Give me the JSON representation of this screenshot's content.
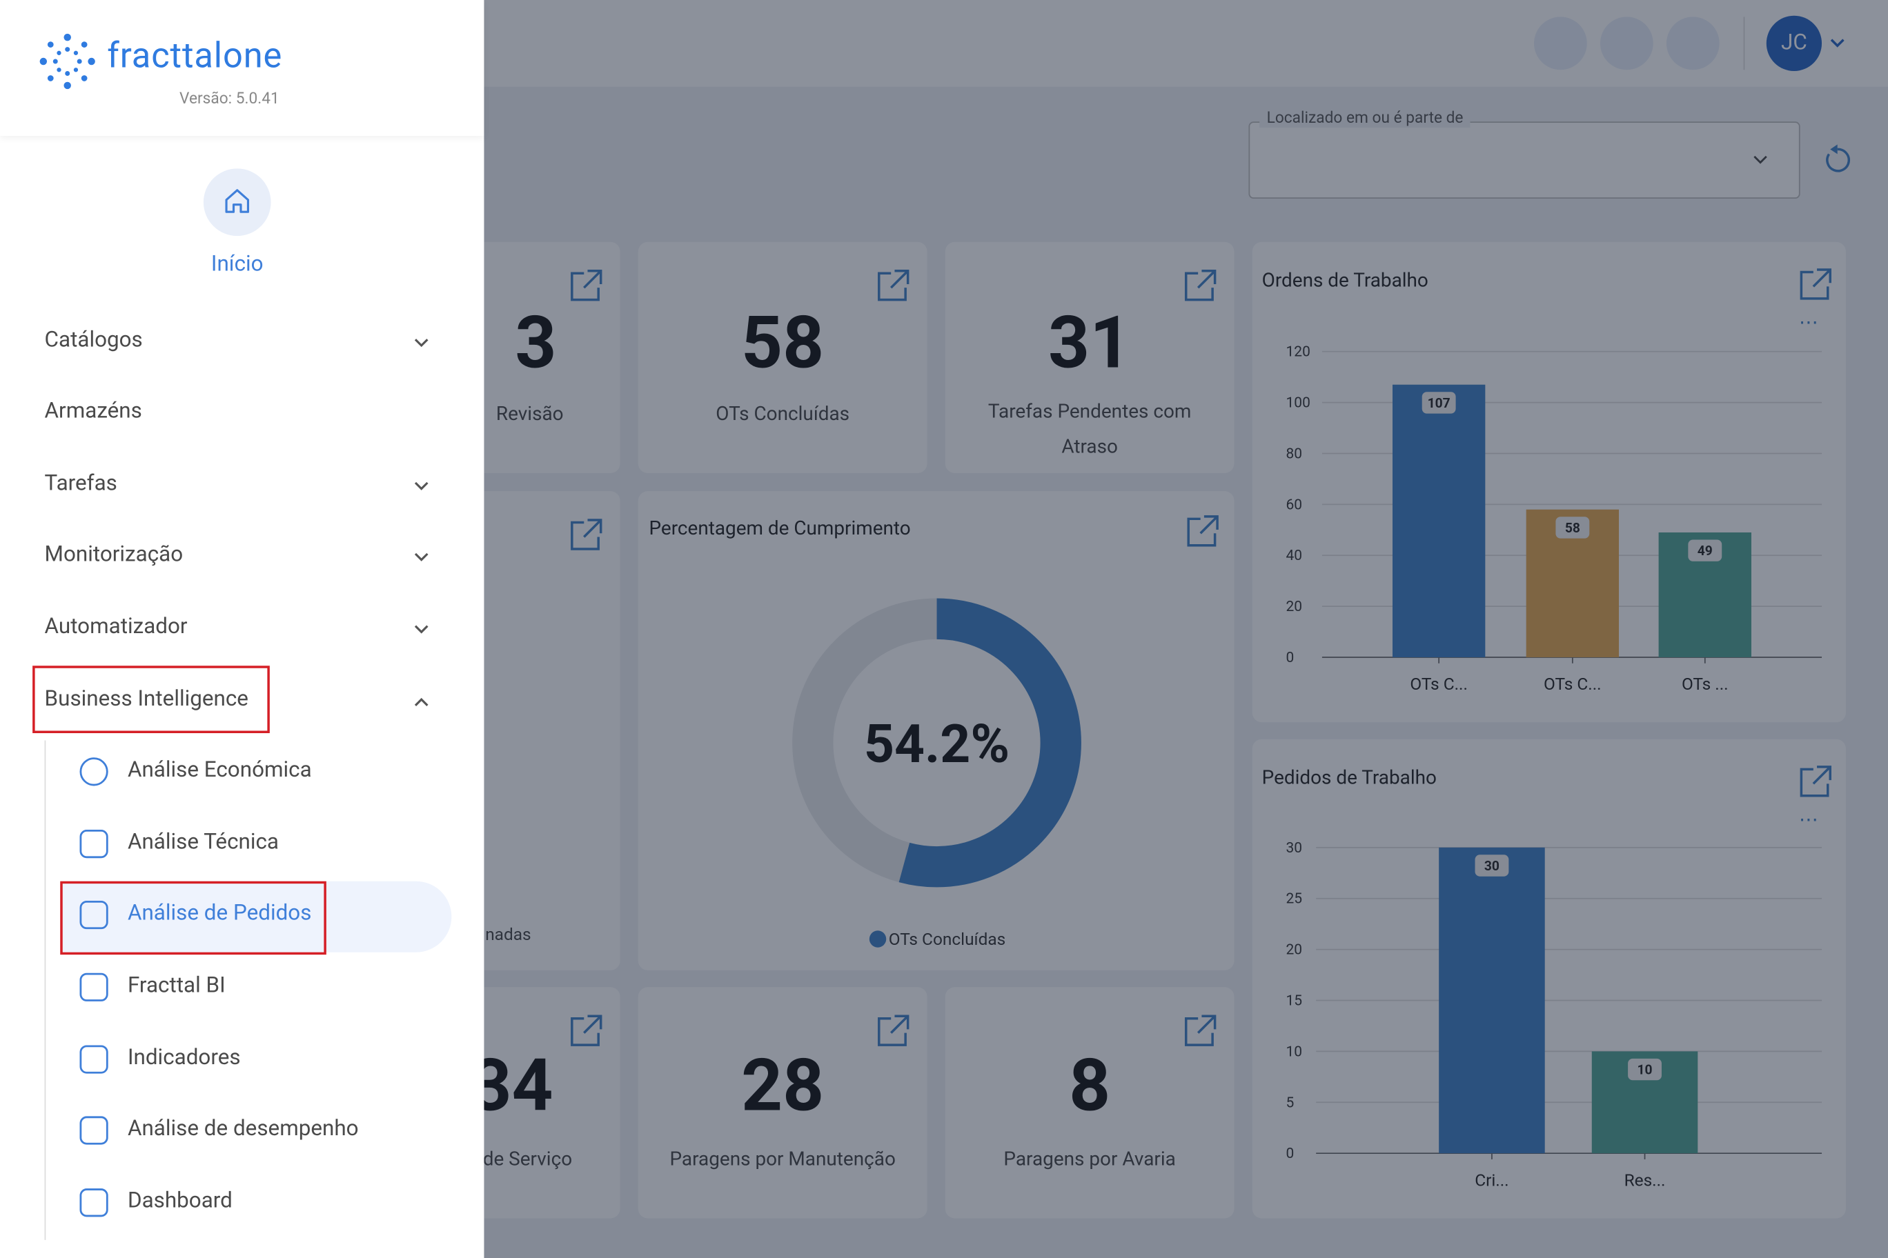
{
  "sidebar": {
    "logo": "fracttalone",
    "version": "Versão: 5.0.41",
    "home": "Início",
    "menu": [
      "Catálogos",
      "Armazéns",
      "Tarefas",
      "Monitorização",
      "Automatizador",
      "Business Intelligence"
    ],
    "submenu": [
      "Análise Económica",
      "Análise Técnica",
      "Análise de Pedidos",
      "Fracttal BI",
      "Indicadores",
      "Análise de desempenho",
      "Dashboard"
    ]
  },
  "header": {
    "avatar": "JC"
  },
  "filter": {
    "label": "Localizado em ou é parte de"
  },
  "cards": [
    {
      "value": 3,
      "label": "Revisão"
    },
    {
      "value": 58,
      "label": "OTs Concluídas"
    },
    {
      "value": 31,
      "label": "Tarefas Pendentes com Atraso"
    },
    {
      "label": "nadas"
    },
    {
      "value": 34,
      "label": "de Serviço"
    },
    {
      "value": 28,
      "label": "Paragens por Manutenção"
    },
    {
      "value": 8,
      "label": "Paragens por Avaria"
    }
  ],
  "charts": [
    {
      "type": "donut",
      "title": "Percentagem de Cumprimento",
      "values": [
        54.2
      ],
      "value_labels": [
        "54.2%"
      ],
      "legend": "OTs Concluídas",
      "color": "#3d7fc4"
    },
    {
      "type": "bar",
      "title": "Ordens de Trabalho",
      "categories": [
        "OTs C...",
        "OTs C...",
        "OTs ..."
      ],
      "values": [
        107,
        58,
        49
      ],
      "colors": [
        "#3d7fc4",
        "#e3a64e",
        "#4fa392"
      ],
      "ylim": [
        0,
        120
      ],
      "yticks": [
        0,
        20,
        40,
        60,
        80,
        100,
        120
      ],
      "grid": true
    },
    {
      "type": "bar",
      "title": "Pedidos de Trabalho",
      "categories": [
        "Cri...",
        "Res..."
      ],
      "values": [
        30,
        10
      ],
      "colors": [
        "#3d7fc4",
        "#4fa392"
      ],
      "ylim": [
        0,
        30
      ],
      "yticks": [
        0,
        5,
        10,
        15,
        20,
        25,
        30
      ],
      "grid": true
    }
  ]
}
